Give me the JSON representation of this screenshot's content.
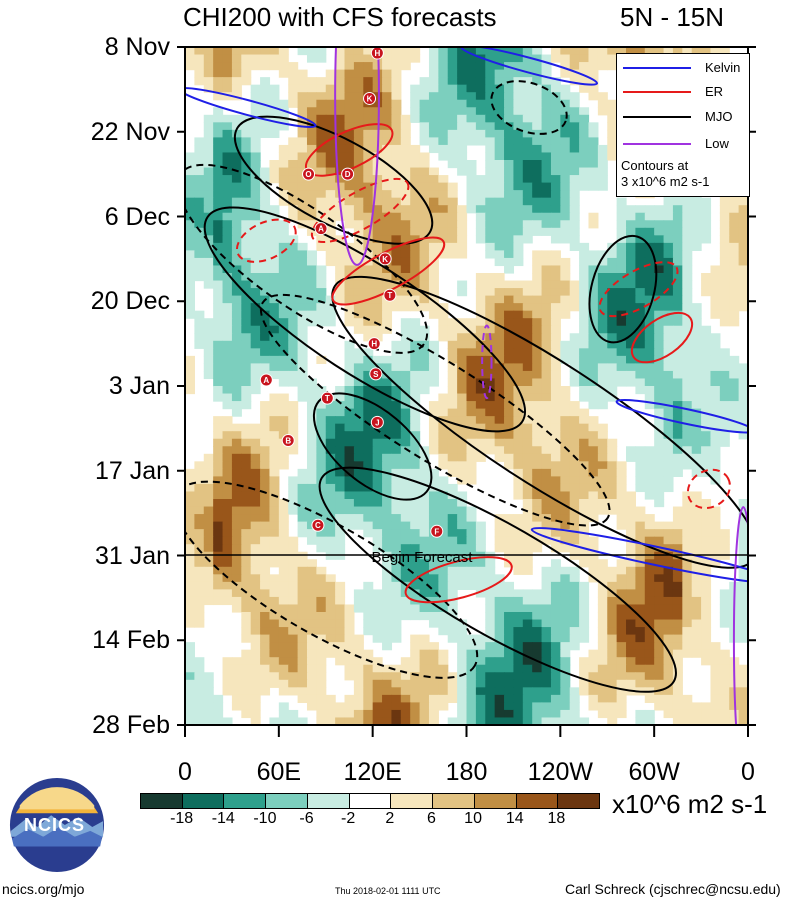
{
  "header": {
    "title": "CHI200 with CFS forecasts",
    "region": "5N - 15N"
  },
  "legend": {
    "items": [
      {
        "label": "Kelvin",
        "color": "#1f1fe6"
      },
      {
        "label": "ER",
        "color": "#e61a1a"
      },
      {
        "label": "MJO",
        "color": "#000000"
      },
      {
        "label": "Low",
        "color": "#a033e0"
      }
    ],
    "contour_note_line1": "Contours at",
    "contour_note_line2": "3 x10^6 m2 s-1"
  },
  "forecast_label": "Begin Forecast",
  "colorbar": {
    "colors": [
      "#173a30",
      "#0e6e5e",
      "#2ea08c",
      "#7ccfbe",
      "#c8ece2",
      "#ffffff",
      "#f6e6bd",
      "#e2c383",
      "#c18f44",
      "#99561a",
      "#6b3610"
    ],
    "labels": [
      "-18",
      "-14",
      "-10",
      "-6",
      "-2",
      "2",
      "6",
      "10",
      "14",
      "18"
    ],
    "units": "x10^6 m2 s-1"
  },
  "footer": {
    "left": "ncics.org/mjo",
    "middle": "Thu 2018-02-01 1111 UTC",
    "right": "Carl Schreck (cjschrec@ncsu.edu)",
    "logo_text": "NCICS"
  },
  "chart_data": {
    "type": "heatmap",
    "title": "CHI200 with CFS forecasts",
    "subtitle": "5N - 15N",
    "x_ticks": [
      "0",
      "60E",
      "120E",
      "180",
      "120W",
      "60W",
      "0"
    ],
    "x_tick_longitudes": [
      0,
      60,
      120,
      180,
      240,
      300,
      360
    ],
    "y_ticks": [
      "8 Nov",
      "22 Nov",
      "6 Dec",
      "20 Dec",
      "3 Jan",
      "17 Jan",
      "31 Jan",
      "14 Feb",
      "28 Feb"
    ],
    "y_tick_days": [
      0,
      14,
      28,
      42,
      56,
      70,
      84,
      98,
      112
    ],
    "xlim": [
      0,
      360
    ],
    "ylim": [
      0,
      112
    ],
    "forecast_start_day": 84,
    "contour_levels": [
      "-18",
      "-14",
      "-10",
      "-6",
      "-2",
      "2",
      "6",
      "10",
      "14",
      "18"
    ],
    "contour_interval": "3 x10^6 m2 s-1",
    "series": [
      {
        "name": "Kelvin",
        "color": "#1f1fe6"
      },
      {
        "name": "ER",
        "color": "#e61a1a"
      },
      {
        "name": "MJO",
        "color": "#000000"
      },
      {
        "name": "Low",
        "color": "#a033e0"
      }
    ],
    "storm_markers": [
      {
        "letter": "H",
        "lon": 123,
        "day": 1
      },
      {
        "letter": "K",
        "lon": 118,
        "day": 8.5
      },
      {
        "letter": "O",
        "lon": 79,
        "day": 21
      },
      {
        "letter": "D",
        "lon": 104,
        "day": 21
      },
      {
        "letter": "A",
        "lon": 87,
        "day": 30
      },
      {
        "letter": "K",
        "lon": 128,
        "day": 35
      },
      {
        "letter": "T",
        "lon": 131,
        "day": 41
      },
      {
        "letter": "H",
        "lon": 121,
        "day": 49
      },
      {
        "letter": "S",
        "lon": 122,
        "day": 54
      },
      {
        "letter": "A",
        "lon": 52,
        "day": 55
      },
      {
        "letter": "T",
        "lon": 91,
        "day": 58
      },
      {
        "letter": "J",
        "lon": 123,
        "day": 62
      },
      {
        "letter": "B",
        "lon": 66,
        "day": 65
      },
      {
        "letter": "C",
        "lon": 85,
        "day": 79
      },
      {
        "letter": "F",
        "lon": 161,
        "day": 80
      }
    ]
  }
}
